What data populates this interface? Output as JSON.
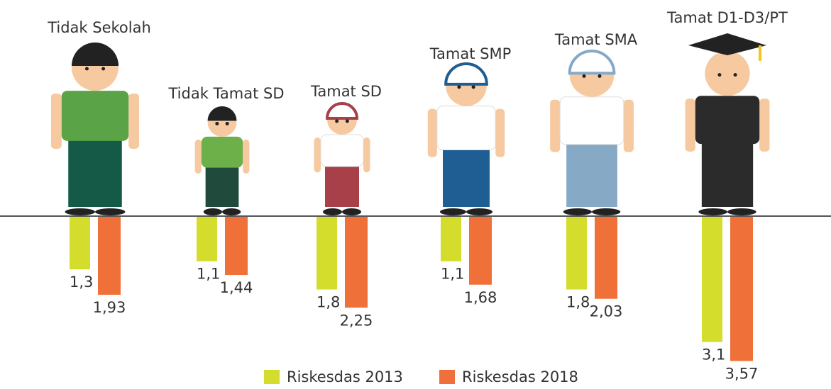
{
  "chart_data": {
    "type": "bar",
    "categories": [
      "Tidak Sekolah",
      "Tidak Tamat SD",
      "Tamat SD",
      "Tamat SMP",
      "Tamat SMA",
      "Tamat D1-D3/PT"
    ],
    "series": [
      {
        "name": "Riskesdas 2013",
        "color": "#d4dc2c",
        "values": [
          1.3,
          1.1,
          1.8,
          1.1,
          1.8,
          3.1
        ],
        "value_labels": [
          "1,3",
          "1,1",
          "1,8",
          "1,1",
          "1,8",
          "3,1"
        ]
      },
      {
        "name": "Riskesdas 2018",
        "color": "#f0703a",
        "values": [
          1.93,
          1.44,
          2.25,
          1.68,
          2.03,
          3.57
        ],
        "value_labels": [
          "1,93",
          "1,44",
          "2,25",
          "1,68",
          "2,03",
          "3,57"
        ]
      }
    ]
  }
}
